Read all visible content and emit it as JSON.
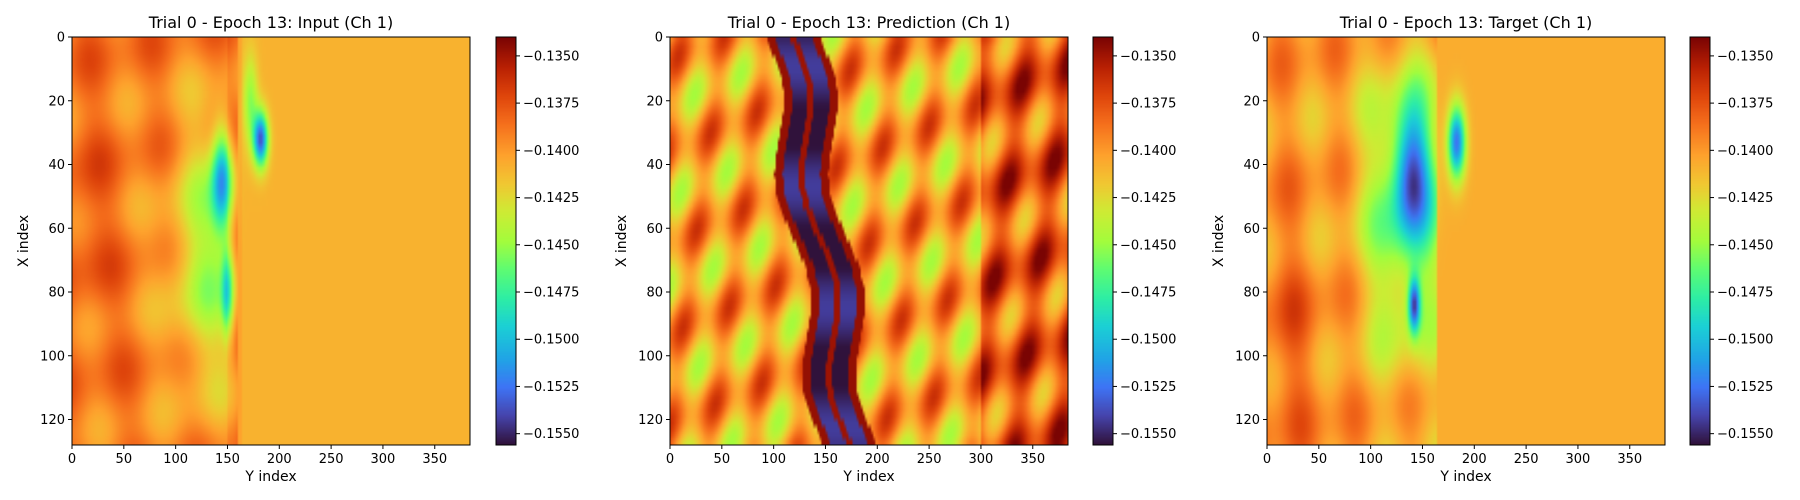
{
  "chart_data": [
    {
      "type": "heatmap",
      "title": "Trial 0 - Epoch 13: Input (Ch 1)",
      "xlabel": "Y index",
      "ylabel": "X index",
      "xlim": [
        0,
        384
      ],
      "ylim": [
        128,
        0
      ],
      "xticks": [
        "0",
        "50",
        "100",
        "150",
        "200",
        "250",
        "300",
        "350"
      ],
      "yticks": [
        "0",
        "20",
        "40",
        "60",
        "80",
        "100",
        "120"
      ],
      "colormap": "turbo",
      "colorbar": {
        "range": [
          -0.1556,
          -0.134
        ],
        "ticks": [
          "−0.1350",
          "−0.1375",
          "−0.1400",
          "−0.1425",
          "−0.1450",
          "−0.1475",
          "−0.1500",
          "−0.1525",
          "−0.1550"
        ]
      },
      "pattern": "input"
    },
    {
      "type": "heatmap",
      "title": "Trial 0 - Epoch 13: Prediction (Ch 1)",
      "xlabel": "Y index",
      "ylabel": "X index",
      "xlim": [
        0,
        384
      ],
      "ylim": [
        128,
        0
      ],
      "xticks": [
        "0",
        "50",
        "100",
        "150",
        "200",
        "250",
        "300",
        "350"
      ],
      "yticks": [
        "0",
        "20",
        "40",
        "60",
        "80",
        "100",
        "120"
      ],
      "colormap": "turbo",
      "colorbar": {
        "range": [
          -0.1556,
          -0.134
        ],
        "ticks": [
          "−0.1350",
          "−0.1375",
          "−0.1400",
          "−0.1425",
          "−0.1450",
          "−0.1475",
          "−0.1500",
          "−0.1525",
          "−0.1550"
        ]
      },
      "pattern": "prediction"
    },
    {
      "type": "heatmap",
      "title": "Trial 0 - Epoch 13: Target (Ch 1)",
      "xlabel": "Y index",
      "ylabel": "X index",
      "xlim": [
        0,
        384
      ],
      "ylim": [
        128,
        0
      ],
      "xticks": [
        "0",
        "50",
        "100",
        "150",
        "200",
        "250",
        "300",
        "350"
      ],
      "yticks": [
        "0",
        "20",
        "40",
        "60",
        "80",
        "100",
        "120"
      ],
      "colormap": "turbo",
      "colorbar": {
        "range": [
          -0.1556,
          -0.134
        ],
        "ticks": [
          "−0.1350",
          "−0.1375",
          "−0.1400",
          "−0.1425",
          "−0.1450",
          "−0.1475",
          "−0.1500",
          "−0.1525",
          "−0.1550"
        ]
      },
      "pattern": "target"
    }
  ]
}
